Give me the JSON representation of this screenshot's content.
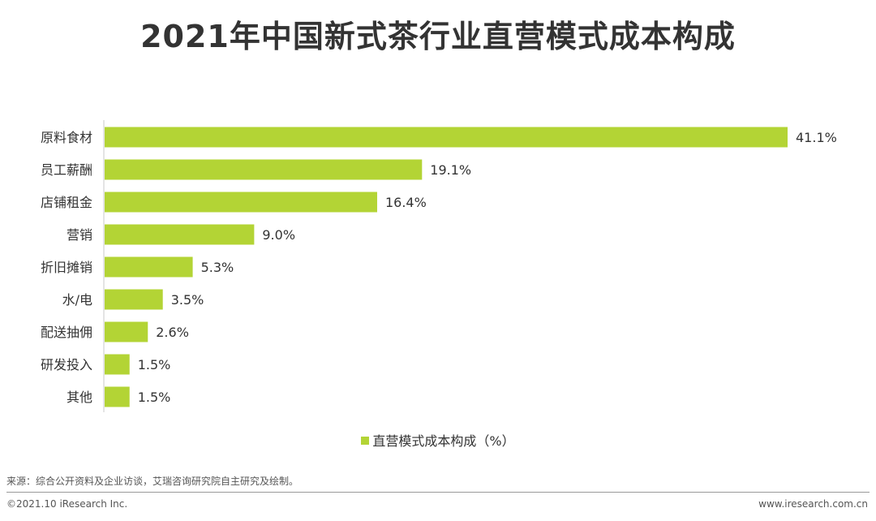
{
  "title": "2021年中国新式茶行业直营模式成本构成",
  "colors": {
    "bar": "#b3d435",
    "axis": "#c8c8c8",
    "text": "#333333"
  },
  "chart_data": {
    "type": "bar",
    "orientation": "horizontal",
    "categories": [
      "原料食材",
      "员工薪酬",
      "店铺租金",
      "营销",
      "折旧摊销",
      "水/电",
      "配送抽佣",
      "研发投入",
      "其他"
    ],
    "values": [
      41.1,
      19.1,
      16.4,
      9.0,
      5.3,
      3.5,
      2.6,
      1.5,
      1.5
    ],
    "value_labels": [
      "41.1%",
      "19.1%",
      "16.4%",
      "9.0%",
      "5.3%",
      "3.5%",
      "2.6%",
      "1.5%",
      "1.5%"
    ],
    "series": [
      {
        "name": "直营模式成本构成（%）",
        "values": [
          41.1,
          19.1,
          16.4,
          9.0,
          5.3,
          3.5,
          2.6,
          1.5,
          1.5
        ]
      }
    ],
    "legend_position": "bottom-center",
    "grid": false
  },
  "legend": {
    "label": "直营模式成本构成（%）"
  },
  "footer": {
    "source": "来源：综合公开资料及企业访谈，艾瑞咨询研究院自主研究及绘制。",
    "copyright": "©2021.10 iResearch Inc.",
    "website": "www.iresearch.com.cn"
  }
}
